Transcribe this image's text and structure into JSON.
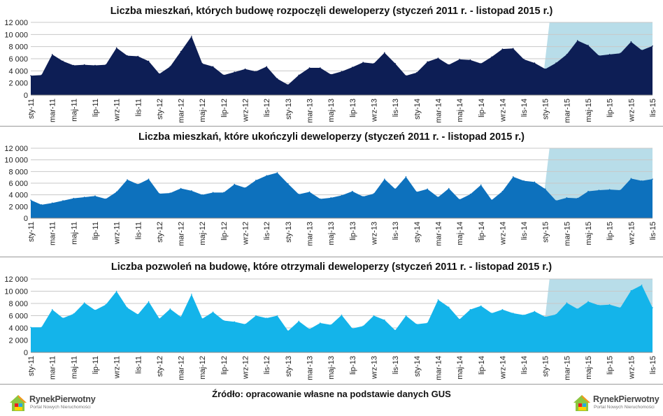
{
  "source_note": "Źródło: opracowanie własne na podstawie danych GUS",
  "logo": {
    "name": "RynekPierwotny",
    "tagline": "Portal Nowych Nieruchomości"
  },
  "shade_color": "#b8dde9",
  "chart_data": [
    {
      "type": "area",
      "title": "Liczba mieszkań, których budowę rozpoczęli deweloperzy (styczeń 2011 r. - listopad 2015 r.)",
      "color": "#0d1e55",
      "ylim": [
        0,
        12000
      ],
      "yticks": [
        "0",
        "2 000",
        "4 000",
        "6 000",
        "8 000",
        "10 000",
        "12 000"
      ],
      "ytick_values": [
        0,
        2000,
        4000,
        6000,
        8000,
        10000,
        12000
      ],
      "xtick_labels": [
        "sty-11",
        "mar-11",
        "maj-11",
        "lip-11",
        "wrz-11",
        "lis-11",
        "sty-12",
        "mar-12",
        "maj-12",
        "lip-12",
        "wrz-12",
        "lis-12",
        "sty-13",
        "mar-13",
        "maj-13",
        "lip-13",
        "wrz-13",
        "lis-13",
        "sty-14",
        "mar-14",
        "maj-14",
        "lip-14",
        "wrz-14",
        "lis-14",
        "sty-15",
        "mar-15",
        "maj-15",
        "lip-15",
        "wrz-15",
        "lis-15"
      ],
      "shaded_from": "sty-15",
      "values": [
        3200,
        3300,
        6700,
        5600,
        4900,
        5000,
        4900,
        5000,
        7800,
        6500,
        6400,
        5600,
        3500,
        4700,
        7200,
        9700,
        5200,
        4700,
        3300,
        3800,
        4300,
        3900,
        4700,
        2700,
        1700,
        3300,
        4500,
        4500,
        3400,
        3900,
        4600,
        5400,
        5200,
        7000,
        5200,
        3200,
        3700,
        5500,
        6100,
        5000,
        5900,
        5800,
        5200,
        6300,
        7600,
        7700,
        5900,
        5300,
        4300,
        5300,
        6700,
        9000,
        8200,
        6500,
        6700,
        6900,
        8800,
        7400,
        8100
      ]
    },
    {
      "type": "area",
      "title": "Liczba mieszkań, które ukończyli deweloperzy (styczeń 2011 r. - listopad 2015 r.)",
      "color": "#0d71bd",
      "ylim": [
        0,
        12000
      ],
      "yticks": [
        "0",
        "2 000",
        "4 000",
        "6 000",
        "8 000",
        "10 000",
        "12 000"
      ],
      "ytick_values": [
        0,
        2000,
        4000,
        6000,
        8000,
        10000,
        12000
      ],
      "xtick_labels": [
        "sty-11",
        "mar-11",
        "maj-11",
        "lip-11",
        "wrz-11",
        "lis-11",
        "sty-12",
        "mar-12",
        "maj-12",
        "lip-12",
        "wrz-12",
        "lis-12",
        "sty-13",
        "mar-13",
        "maj-13",
        "lip-13",
        "wrz-13",
        "lis-13",
        "sty-14",
        "mar-14",
        "maj-14",
        "lip-14",
        "wrz-14",
        "lis-14",
        "sty-15",
        "mar-15",
        "maj-15",
        "lip-15",
        "wrz-15",
        "lis-15"
      ],
      "shaded_from": "sty-15",
      "values": [
        3100,
        2300,
        2600,
        3000,
        3400,
        3600,
        3800,
        3300,
        4500,
        6600,
        5800,
        6700,
        4200,
        4300,
        5100,
        4700,
        4000,
        4400,
        4400,
        5800,
        5200,
        6500,
        7300,
        7800,
        5900,
        4100,
        4500,
        3300,
        3500,
        3900,
        4600,
        3700,
        4200,
        6700,
        5000,
        7100,
        4500,
        5000,
        3600,
        5100,
        3200,
        4100,
        5700,
        3100,
        4600,
        7100,
        6400,
        6200,
        5000,
        3000,
        3500,
        3400,
        4600,
        4800,
        4900,
        4800,
        6800,
        6400,
        6700
      ]
    },
    {
      "type": "area",
      "title": "Liczba pozwoleń na budowę, które otrzymali deweloperzy (styczeń 2011 r. - listopad 2015 r.)",
      "color": "#14b4ea",
      "ylim": [
        0,
        12000
      ],
      "yticks": [
        "0",
        "2 000",
        "4 000",
        "6 000",
        "8 000",
        "10 000",
        "12 000"
      ],
      "ytick_values": [
        0,
        2000,
        4000,
        6000,
        8000,
        10000,
        12000
      ],
      "xtick_labels": [
        "sty-11",
        "mar-11",
        "maj-11",
        "lip-11",
        "wrz-11",
        "lis-11",
        "sty-12",
        "mar-12",
        "maj-12",
        "lip-12",
        "wrz-12",
        "lis-12",
        "sty-13",
        "mar-13",
        "maj-13",
        "lip-13",
        "wrz-13",
        "lis-13",
        "sty-14",
        "mar-14",
        "maj-14",
        "lip-14",
        "wrz-14",
        "lis-14",
        "sty-15",
        "mar-15",
        "maj-15",
        "lip-15",
        "wrz-15",
        "lis-15"
      ],
      "shaded_from": "sty-15",
      "values": [
        4100,
        4100,
        7000,
        5600,
        6300,
        8100,
        6900,
        7800,
        10000,
        7300,
        6200,
        8300,
        5500,
        7100,
        5800,
        9500,
        5500,
        6600,
        5200,
        5000,
        4600,
        6000,
        5600,
        6000,
        3500,
        5100,
        3800,
        4800,
        4500,
        6100,
        3900,
        4300,
        6000,
        5300,
        3600,
        6000,
        4600,
        4800,
        8600,
        7400,
        5400,
        7000,
        7600,
        6400,
        7000,
        6400,
        6100,
        6700,
        5800,
        6200,
        8100,
        7100,
        8300,
        7700,
        7800,
        7300,
        10100,
        11000,
        7300
      ]
    }
  ]
}
